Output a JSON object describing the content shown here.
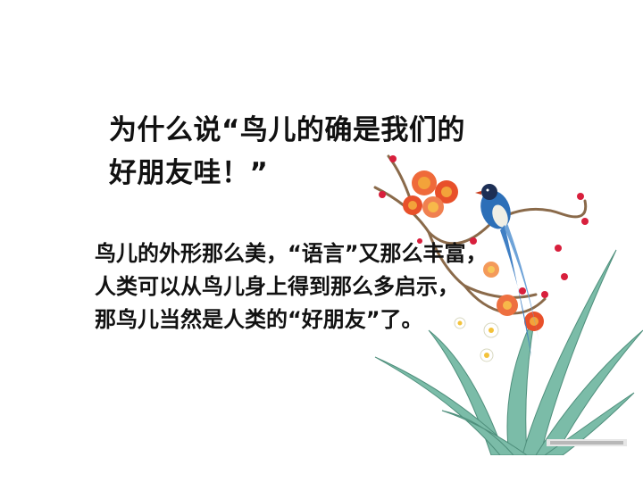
{
  "slide": {
    "title_lines": [
      "为什么说“鸟儿的确是我们的",
      "好朋友哇！”"
    ],
    "body_lines": [
      "鸟儿的外形那么美，“语言”又那么丰富，",
      "人类可以从鸟儿身上得到那么多启示，",
      "那鸟儿当然是人类的“好朋友”了。"
    ]
  },
  "colors": {
    "text": "#111111",
    "blossom": "#e8502a",
    "bud": "#d81f3c",
    "leaf": "#6fb3a0",
    "bird_blue": "#2c6fb8"
  }
}
